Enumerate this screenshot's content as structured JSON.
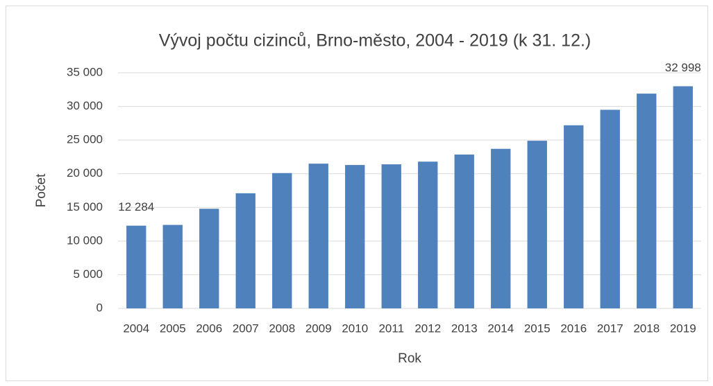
{
  "chart_data": {
    "type": "bar",
    "title": "Vývoj počtu cizinců, Brno-město, 2004 - 2019 (k 31. 12.)",
    "xlabel": "Rok",
    "ylabel": "Počet",
    "categories": [
      "2004",
      "2005",
      "2006",
      "2007",
      "2008",
      "2009",
      "2010",
      "2011",
      "2012",
      "2013",
      "2014",
      "2015",
      "2016",
      "2017",
      "2018",
      "2019"
    ],
    "values": [
      12284,
      12400,
      14800,
      17100,
      20100,
      21500,
      21300,
      21400,
      21800,
      22850,
      23700,
      24900,
      27200,
      29500,
      31900,
      32998
    ],
    "value_labels": [
      "12 284",
      null,
      null,
      null,
      null,
      null,
      null,
      null,
      null,
      null,
      null,
      null,
      null,
      null,
      null,
      "32 998"
    ],
    "color": "#4f81bd",
    "ylim": [
      0,
      35000
    ],
    "yticks": [
      0,
      {
        "value": 5000,
        "label": "5 000"
      },
      {
        "value": 10000,
        "label": "10 000"
      },
      {
        "value": 15000,
        "label": "15 000"
      },
      {
        "value": 20000,
        "label": "20 000"
      },
      {
        "value": 25000,
        "label": "25 000"
      },
      {
        "value": 30000,
        "label": "30 000"
      },
      {
        "value": 35000,
        "label": "35 000"
      }
    ],
    "grid": true
  }
}
